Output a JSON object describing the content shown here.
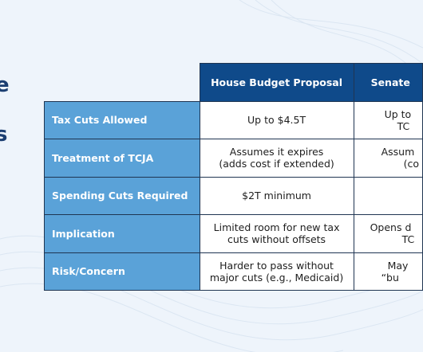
{
  "slide_edge_fragments": [
    "e",
    "s"
  ],
  "table": {
    "columns": [
      "House Budget Proposal",
      "Senate"
    ],
    "rows": [
      {
        "label": "Tax Cuts Allowed",
        "house": [
          "Up to $4.5T"
        ],
        "senate": [
          "Up to",
          "TC"
        ]
      },
      {
        "label": "Treatment of TCJA",
        "house": [
          "Assumes it expires",
          "(adds cost if extended)"
        ],
        "senate": [
          "Assum",
          "(co"
        ]
      },
      {
        "label": "Spending Cuts Required",
        "house": [
          "$2T minimum"
        ],
        "senate": []
      },
      {
        "label": "Implication",
        "house": [
          "Limited room for new tax",
          "cuts without offsets"
        ],
        "senate": [
          "Opens d",
          "TC"
        ]
      },
      {
        "label": "Risk/Concern",
        "house": [
          "Harder to pass without",
          "major cuts (e.g., Medicaid)"
        ],
        "senate": [
          "May",
          "“bu"
        ]
      }
    ]
  }
}
